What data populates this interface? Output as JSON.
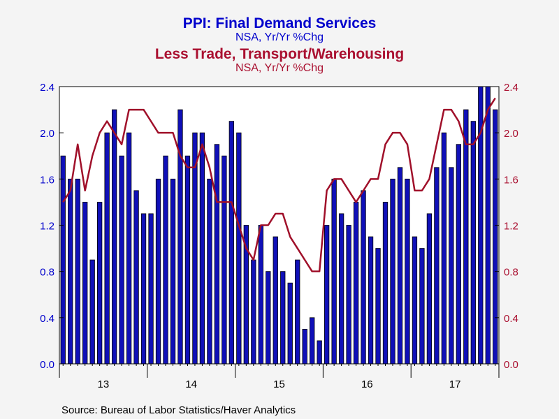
{
  "chart_data": {
    "type": "bar",
    "title": "PPI: Final Demand Services",
    "subtitle": "NSA, Yr/Yr %Chg",
    "title2": "Less Trade, Transport/Warehousing",
    "subtitle2": "NSA, Yr/Yr %Chg",
    "source": "Source:  Bureau of Labor Statistics/Haver Analytics",
    "ylim": [
      0.0,
      2.4
    ],
    "yticks": [
      "0.0",
      "0.4",
      "0.8",
      "1.2",
      "1.6",
      "2.0",
      "2.4"
    ],
    "year_labels": [
      "13",
      "14",
      "15",
      "16",
      "17"
    ],
    "colors": {
      "bar": "#1010b8",
      "bar_edge": "#000000",
      "line": "#a0102a",
      "title": "#0000cc",
      "title2": "#aa1030",
      "plot_bg": "#ffffff",
      "page_bg": "#f4f4f4"
    },
    "series": [
      {
        "name": "PPI: Final Demand Services",
        "type": "bar",
        "axis": "left",
        "values": [
          1.8,
          1.6,
          1.6,
          1.4,
          0.9,
          1.4,
          2.0,
          2.2,
          1.8,
          2.0,
          1.5,
          1.3,
          1.3,
          1.6,
          1.8,
          1.6,
          2.2,
          1.8,
          2.0,
          2.0,
          1.6,
          1.9,
          1.8,
          2.1,
          2.0,
          1.2,
          0.9,
          1.2,
          0.8,
          1.1,
          0.8,
          0.7,
          0.9,
          0.3,
          0.4,
          0.2,
          1.2,
          1.6,
          1.3,
          1.2,
          1.4,
          1.5,
          1.1,
          1.0,
          1.4,
          1.6,
          1.7,
          1.6,
          1.1,
          1.0,
          1.3,
          1.7,
          2.0,
          1.7,
          1.9,
          2.2,
          2.1,
          2.4,
          2.4,
          2.2
        ]
      },
      {
        "name": "Less Trade, Transport/Warehousing",
        "type": "line",
        "axis": "right",
        "values": [
          1.4,
          1.5,
          1.9,
          1.5,
          1.8,
          2.0,
          2.1,
          2.0,
          1.9,
          2.2,
          2.2,
          2.2,
          2.1,
          2.0,
          2.0,
          2.0,
          1.8,
          1.7,
          1.7,
          1.9,
          1.7,
          1.4,
          1.4,
          1.4,
          1.2,
          1.0,
          0.9,
          1.2,
          1.2,
          1.3,
          1.3,
          1.1,
          1.0,
          0.9,
          0.8,
          0.8,
          1.5,
          1.6,
          1.6,
          1.5,
          1.4,
          1.5,
          1.6,
          1.6,
          1.9,
          2.0,
          2.0,
          1.9,
          1.5,
          1.5,
          1.6,
          1.9,
          2.2,
          2.2,
          2.1,
          1.9,
          1.9,
          2.0,
          2.2,
          2.3
        ]
      }
    ]
  }
}
